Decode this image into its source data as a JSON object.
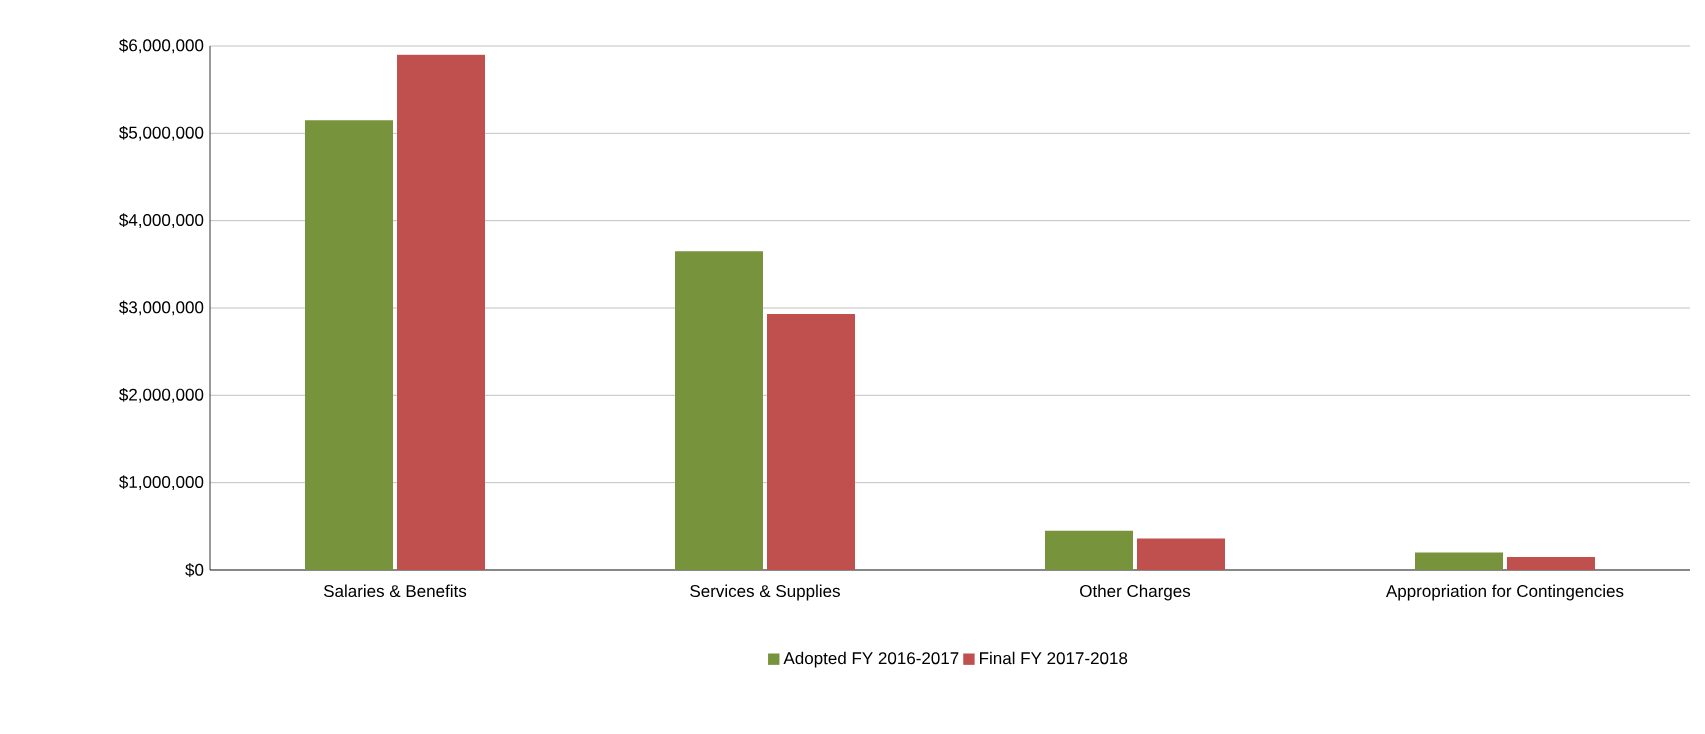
{
  "chart_data": {
    "type": "bar",
    "categories": [
      "Salaries & Benefits",
      "Services & Supplies",
      "Other Charges",
      "Appropriation for Contingencies"
    ],
    "series": [
      {
        "name": "Adopted FY 2016-2017",
        "color": "#77933c",
        "values": [
          5150000,
          3650000,
          450000,
          200000
        ]
      },
      {
        "name": "Final FY 2017-2018",
        "color": "#c0504d",
        "values": [
          5900000,
          2930000,
          360000,
          150000
        ]
      }
    ],
    "ylim": [
      0,
      6000000
    ],
    "yticks": [
      {
        "value": 0,
        "label": "$0"
      },
      {
        "value": 1000000,
        "label": "$1,000,000"
      },
      {
        "value": 2000000,
        "label": "$2,000,000"
      },
      {
        "value": 3000000,
        "label": "$3,000,000"
      },
      {
        "value": 4000000,
        "label": "$4,000,000"
      },
      {
        "value": 5000000,
        "label": "$5,000,000"
      },
      {
        "value": 6000000,
        "label": "$6,000,000"
      }
    ],
    "grid": "y",
    "legend": "bottom"
  }
}
